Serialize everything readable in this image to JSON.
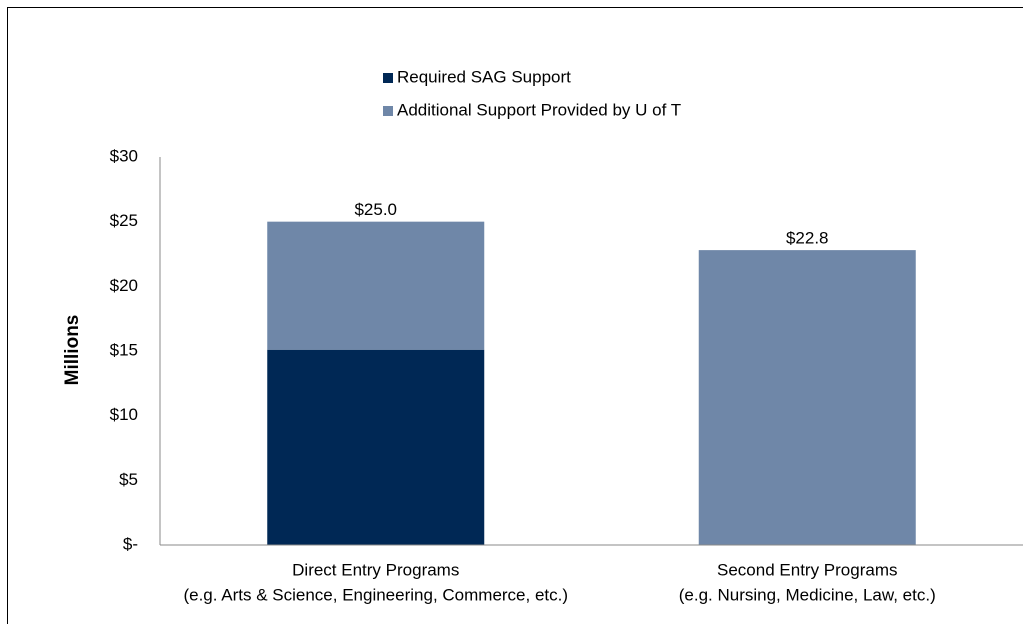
{
  "chart_data": {
    "type": "stacked-bar",
    "categories": [
      "Direct Entry Programs",
      "Second Entry Programs"
    ],
    "category_details": [
      "(e.g. Arts & Science, Engineering, Commerce, etc.)",
      "(e.g. Nursing, Medicine, Law, etc.)"
    ],
    "series": [
      {
        "name": "Required SAG Support",
        "color": "#002855",
        "values": [
          15.1,
          null
        ]
      },
      {
        "name": "Additional Support Provided by U of T",
        "color": "#6f87a8",
        "values": [
          9.9,
          22.8
        ]
      }
    ],
    "totals": [
      25.0,
      22.8
    ],
    "total_labels": [
      "$25.0",
      "$22.8"
    ],
    "ylabel": "Millions",
    "ylim": [
      0,
      30
    ],
    "yticks": [
      {
        "value": 0,
        "label": "$-"
      },
      {
        "value": 5,
        "label": "$5"
      },
      {
        "value": 10,
        "label": "$10"
      },
      {
        "value": 15,
        "label": "$15"
      },
      {
        "value": 20,
        "label": "$20"
      },
      {
        "value": 25,
        "label": "$25"
      },
      {
        "value": 30,
        "label": "$30"
      }
    ],
    "grid": false
  }
}
